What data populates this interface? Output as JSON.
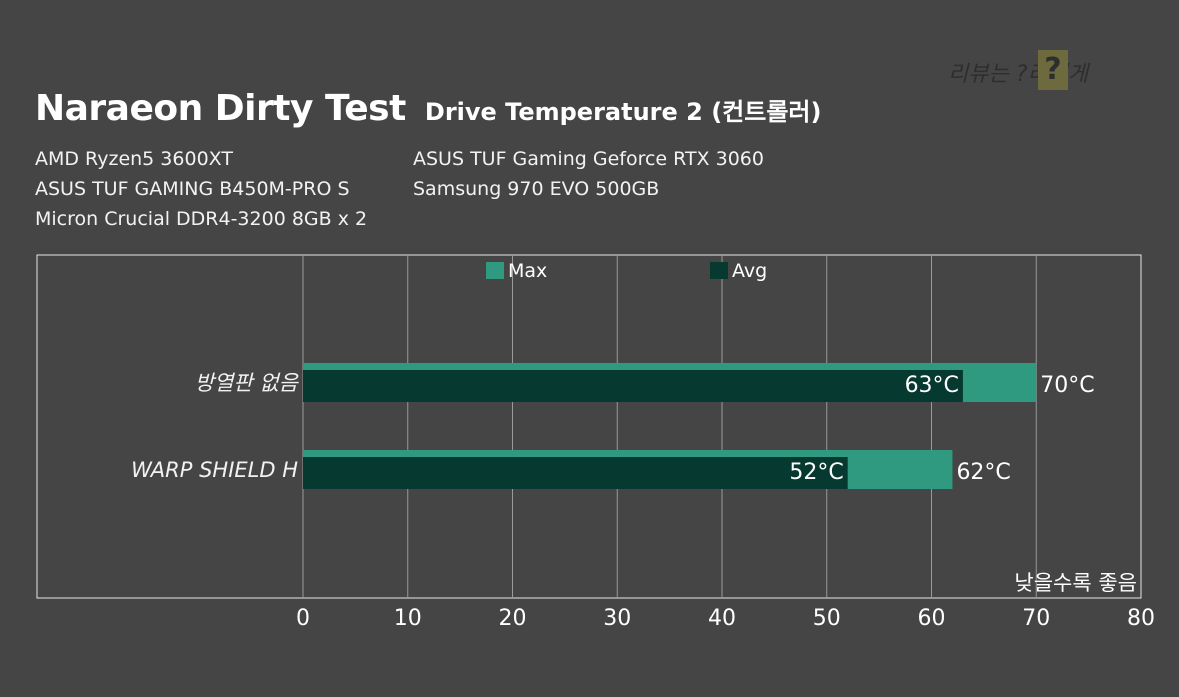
{
  "header": {
    "title": "Naraeon Dirty Test",
    "subtitle": "Drive Temperature 2 (컨트롤러)"
  },
  "specs": {
    "left": [
      "AMD Ryzen5 3600XT",
      "ASUS TUF GAMING B450M-PRO S",
      "Micron Crucial DDR4-3200 8GB x 2"
    ],
    "right": [
      "ASUS TUF Gaming Geforce RTX 3060",
      "Samsung 970 EVO 500GB"
    ]
  },
  "watermark": {
    "text": "리뷰는 ?리있게",
    "badge": "?"
  },
  "chart_data": {
    "type": "bar",
    "orientation": "horizontal",
    "categories": [
      "방열판 없음",
      "WARP SHIELD H"
    ],
    "series": [
      {
        "name": "Max",
        "values": [
          70,
          62
        ],
        "labels": [
          "70°C",
          "62°C"
        ],
        "color": "#2f9a80"
      },
      {
        "name": "Avg",
        "values": [
          63,
          52
        ],
        "labels": [
          "63°C",
          "52°C"
        ],
        "color": "#063a30"
      }
    ],
    "xlim": [
      0,
      80
    ],
    "xticks": [
      0,
      10,
      20,
      30,
      40,
      50,
      60,
      70,
      80
    ],
    "grid": true,
    "legend": "top-center",
    "annotation": "낮을수록 좋음"
  }
}
